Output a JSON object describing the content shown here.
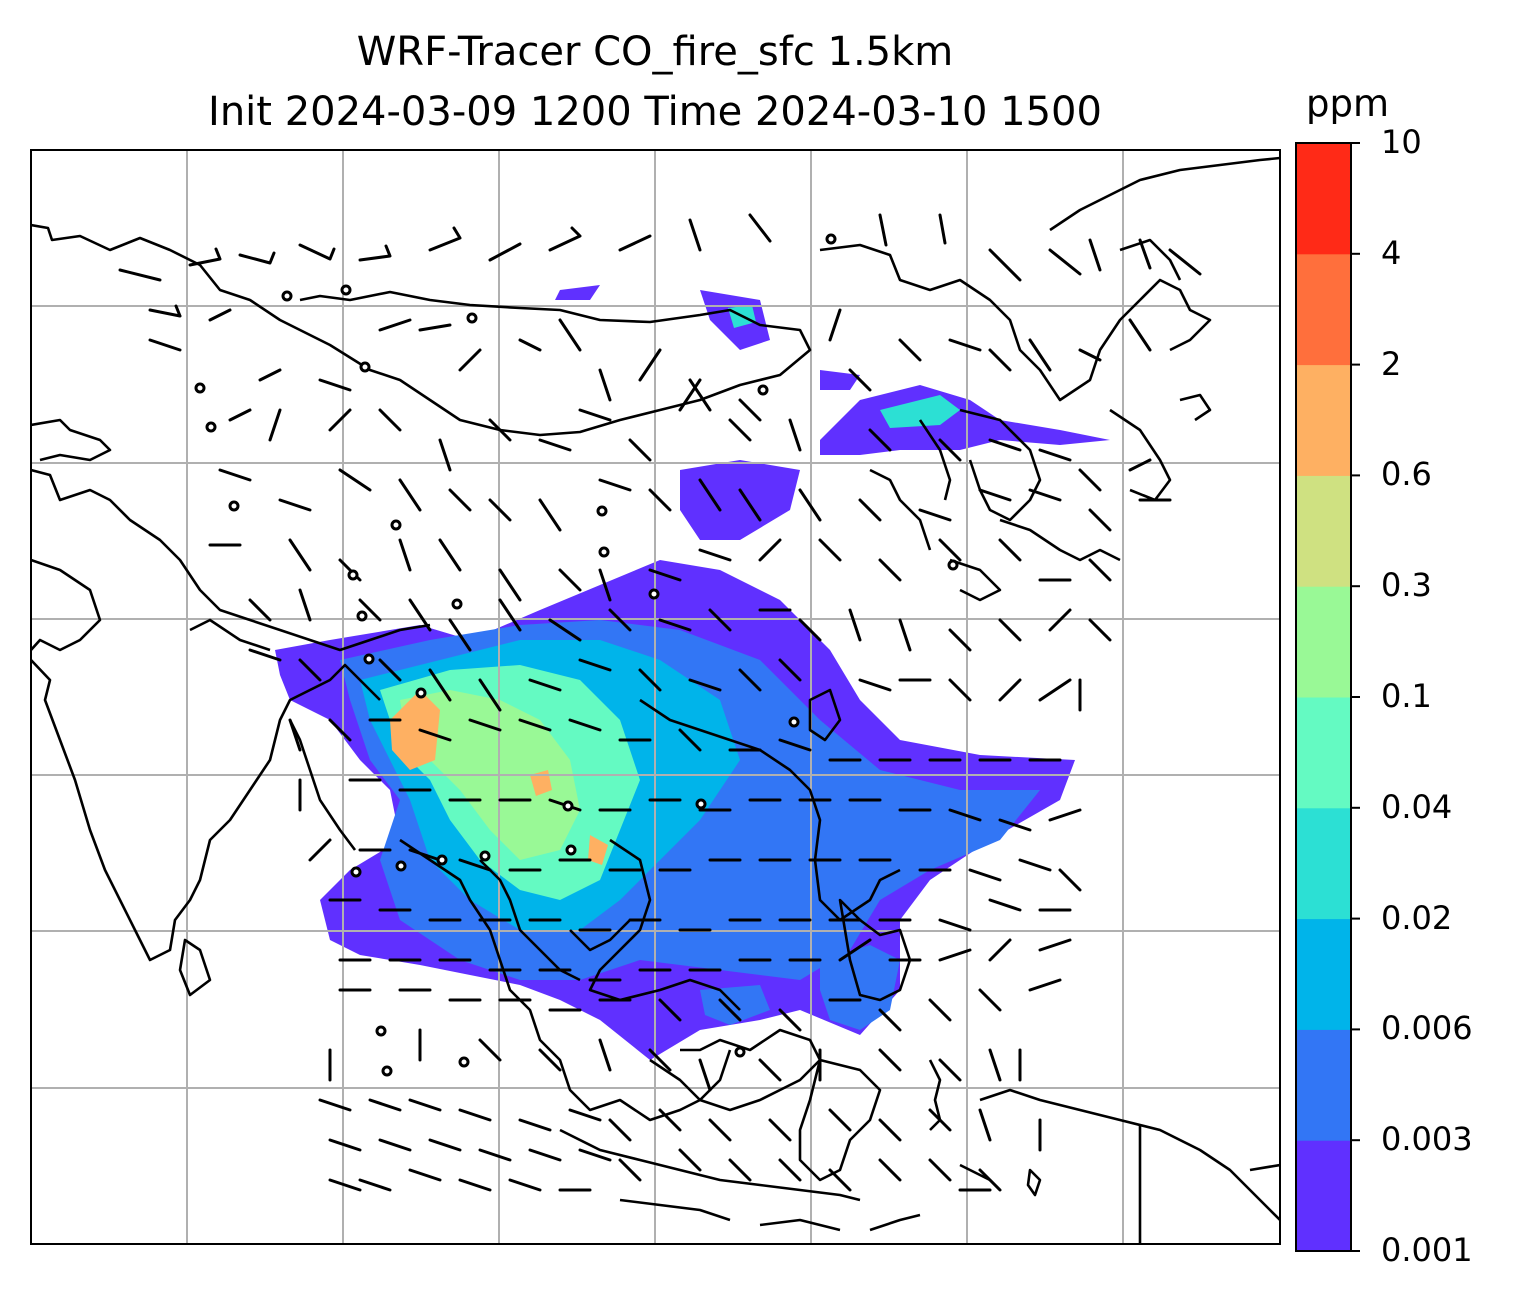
{
  "title": {
    "line1": "WRF-Tracer CO_fire_sfc 1.5km",
    "line2": "Init 2024-03-09 1200 Time 2024-03-10 1500"
  },
  "colorbar": {
    "unit": "ppm",
    "ticks": [
      "0.001",
      "0.003",
      "0.006",
      "0.02",
      "0.04",
      "0.1",
      "0.3",
      "0.6",
      "2",
      "4",
      "10"
    ],
    "colors": [
      "#6030ff",
      "#3276f5",
      "#00b4ea",
      "#2ce0d4",
      "#64fac2",
      "#99f996",
      "#cfe181",
      "#feb062",
      "#ff6f3c",
      "#ff2a17"
    ]
  },
  "map": {
    "field": "CO_fire_sfc",
    "gridlines": true,
    "overlays": [
      "coastlines",
      "country-borders",
      "wind-barbs"
    ]
  }
}
